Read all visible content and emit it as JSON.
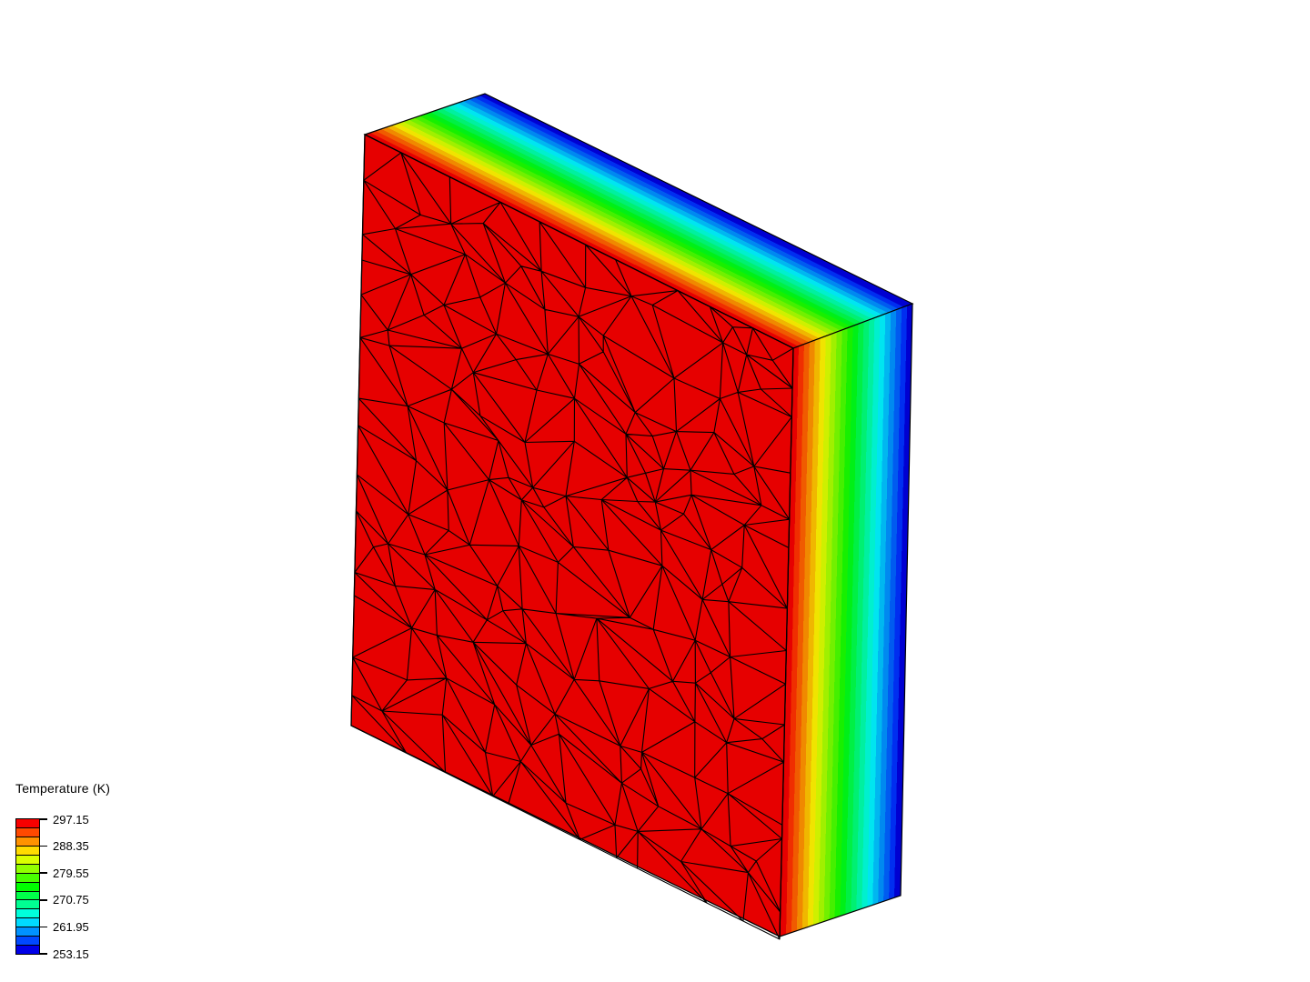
{
  "scene": {
    "background_color": "#ffffff"
  },
  "legend": {
    "title": "Temperature (K)",
    "tick_labels": [
      "297.15",
      "288.35",
      "279.55",
      "270.75",
      "261.95",
      "253.15"
    ],
    "band_colors": [
      "#f80000",
      "#ff4900",
      "#ff9200",
      "#ffdb00",
      "#dbff00",
      "#92ff00",
      "#49ff00",
      "#00ff00",
      "#00ff49",
      "#00ff92",
      "#00ffdb",
      "#00dbff",
      "#0092ff",
      "#0049ff",
      "#0000e8"
    ]
  },
  "temperature_scale": {
    "unit": "K",
    "max": 297.15,
    "min": 253.15,
    "ticks": [
      297.15,
      288.35,
      279.55,
      270.75,
      261.95,
      253.15
    ]
  },
  "model": {
    "front_face_color": "#e60000",
    "mesh_line_color": "#000000",
    "edge_color": "#000000",
    "gradient_band_colors": [
      "#e60000",
      "#f02e00",
      "#f05b00",
      "#f08900",
      "#f0b700",
      "#f0e400",
      "#cef000",
      "#a0f000",
      "#72f000",
      "#45f000",
      "#17f000",
      "#00f017",
      "#00f045",
      "#00f072",
      "#00f0a0",
      "#00f0ce",
      "#00e5f0",
      "#00b7f0",
      "#0089f0",
      "#005bf0",
      "#002ef0",
      "#0000d2"
    ]
  }
}
